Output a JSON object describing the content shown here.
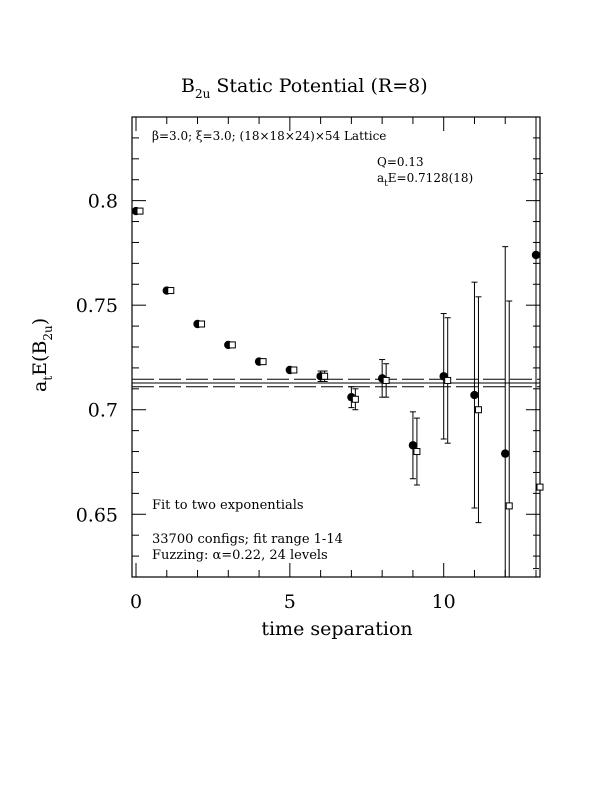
{
  "chart_data": {
    "type": "scatter",
    "title": "B",
    "title_sub": "2u",
    "title_rest": " Static Potential (R=8)",
    "ylabel_main": "a",
    "ylabel_sub_t": "t",
    "ylabel_mid": "E(B",
    "ylabel_sub_2u": "2u",
    "ylabel_end": ")",
    "xlabel": "time separation",
    "xlim": [
      0,
      13
    ],
    "ylim": [
      0.62,
      0.84
    ],
    "x_ticks": [
      {
        "value": 0,
        "label": "0"
      },
      {
        "value": 5,
        "label": "5"
      },
      {
        "value": 10,
        "label": "10"
      }
    ],
    "y_ticks": [
      {
        "value": 0.65,
        "label": "0.65"
      },
      {
        "value": 0.7,
        "label": "0.7"
      },
      {
        "value": 0.75,
        "label": "0.75"
      },
      {
        "value": 0.8,
        "label": "0.8"
      }
    ],
    "annotations": {
      "lattice": "β=3.0; ξ=3.0; (18×18×24)×54 Lattice",
      "q_value": "Q=0.13",
      "energy_prefix": "a",
      "energy_sub": "t",
      "energy_value": "E=0.7128(18)",
      "fit_type": "Fit to two exponentials",
      "configs": "33700 configs; fit range 1-14",
      "fuzzing": "Fuzzing: α=0.22, 24 levels"
    },
    "fit": {
      "center": 0.7128,
      "error": 0.0018
    },
    "series": [
      {
        "marker": "filled-circle",
        "points": [
          {
            "x": 0,
            "y": 0.795,
            "err": 0.0005
          },
          {
            "x": 1,
            "y": 0.757,
            "err": 0.0008
          },
          {
            "x": 2,
            "y": 0.741,
            "err": 0.0009
          },
          {
            "x": 3,
            "y": 0.731,
            "err": 0.0012
          },
          {
            "x": 4,
            "y": 0.723,
            "err": 0.0015
          },
          {
            "x": 5,
            "y": 0.719,
            "err": 0.0018
          },
          {
            "x": 6,
            "y": 0.716,
            "err": 0.0025
          },
          {
            "x": 7,
            "y": 0.706,
            "err": 0.005
          },
          {
            "x": 8,
            "y": 0.715,
            "err": 0.009
          },
          {
            "x": 9,
            "y": 0.683,
            "err": 0.016
          },
          {
            "x": 10,
            "y": 0.716,
            "err": 0.03
          },
          {
            "x": 11,
            "y": 0.707,
            "err": 0.054
          },
          {
            "x": 12,
            "y": 0.679,
            "err": 0.099
          },
          {
            "x": 13,
            "y": 0.774,
            "err": 0.15
          }
        ]
      },
      {
        "marker": "open-square",
        "points": [
          {
            "x": 0,
            "y": 0.795,
            "err": 0.0005
          },
          {
            "x": 1,
            "y": 0.757,
            "err": 0.0008
          },
          {
            "x": 2,
            "y": 0.741,
            "err": 0.0009
          },
          {
            "x": 3,
            "y": 0.731,
            "err": 0.0012
          },
          {
            "x": 4,
            "y": 0.723,
            "err": 0.0015
          },
          {
            "x": 5,
            "y": 0.719,
            "err": 0.0018
          },
          {
            "x": 6,
            "y": 0.716,
            "err": 0.0025
          },
          {
            "x": 7,
            "y": 0.705,
            "err": 0.005
          },
          {
            "x": 8,
            "y": 0.714,
            "err": 0.008
          },
          {
            "x": 9,
            "y": 0.68,
            "err": 0.016
          },
          {
            "x": 10,
            "y": 0.714,
            "err": 0.03
          },
          {
            "x": 11,
            "y": 0.7,
            "err": 0.054
          },
          {
            "x": 12,
            "y": 0.654,
            "err": 0.098
          },
          {
            "x": 13,
            "y": 0.663,
            "err": 0.15
          }
        ]
      }
    ]
  }
}
